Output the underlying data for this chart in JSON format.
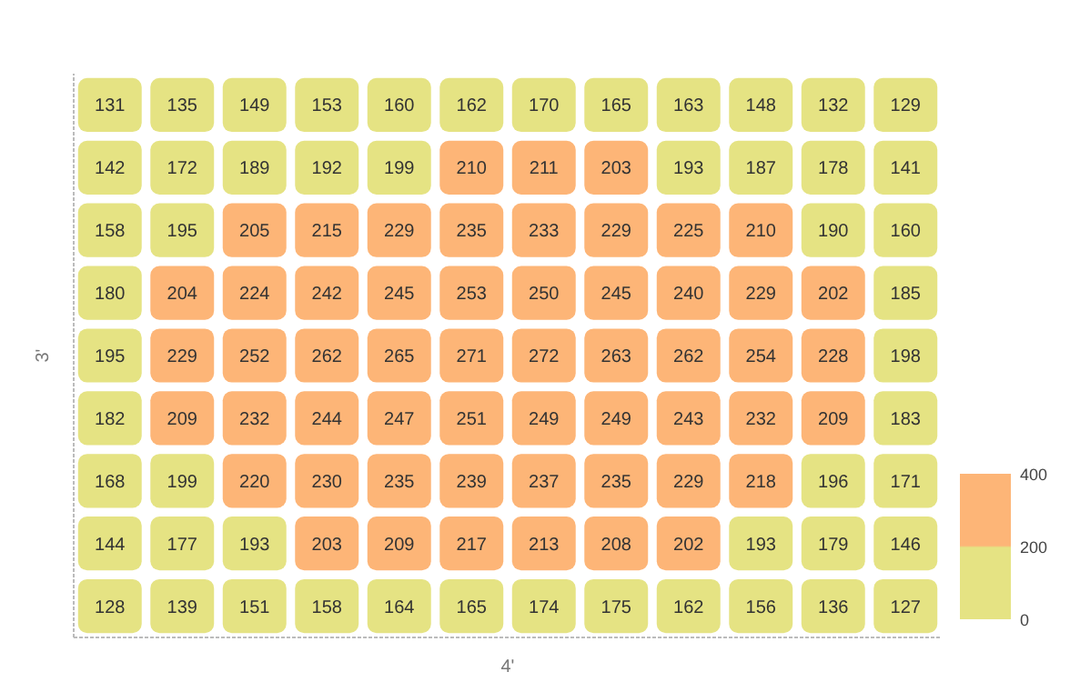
{
  "chart_data": {
    "type": "heatmap",
    "xlabel": "4'",
    "ylabel": "3'",
    "categories": [
      null,
      null,
      null,
      null,
      null,
      null,
      null,
      null,
      null,
      null,
      null,
      null
    ],
    "y_categories": [
      null,
      null,
      null,
      null,
      null,
      null,
      null,
      null,
      null
    ],
    "cells": [
      [
        131,
        135,
        149,
        153,
        160,
        162,
        170,
        165,
        163,
        148,
        132,
        129
      ],
      [
        142,
        172,
        189,
        192,
        199,
        210,
        211,
        203,
        193,
        187,
        178,
        141
      ],
      [
        158,
        195,
        205,
        215,
        229,
        235,
        233,
        229,
        225,
        210,
        190,
        160
      ],
      [
        180,
        204,
        224,
        242,
        245,
        253,
        250,
        245,
        240,
        229,
        202,
        185
      ],
      [
        195,
        229,
        252,
        262,
        265,
        271,
        272,
        263,
        262,
        254,
        228,
        198
      ],
      [
        182,
        209,
        232,
        244,
        247,
        251,
        249,
        249,
        243,
        232,
        209,
        183
      ],
      [
        168,
        199,
        220,
        230,
        235,
        239,
        237,
        235,
        229,
        218,
        196,
        171
      ],
      [
        144,
        177,
        193,
        203,
        209,
        217,
        213,
        208,
        202,
        193,
        179,
        146
      ],
      [
        128,
        139,
        151,
        158,
        164,
        165,
        174,
        175,
        162,
        156,
        136,
        127
      ]
    ],
    "colors": [
      "#e5e383",
      "#fdb577"
    ],
    "clim": [
      0,
      400
    ],
    "cticks": [
      0,
      200,
      400
    ],
    "data_labels": true
  }
}
